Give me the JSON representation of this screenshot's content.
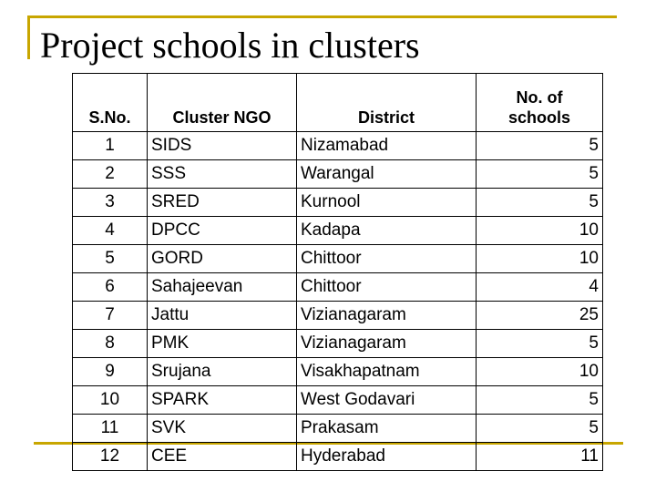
{
  "slide": {
    "title": "Project schools in clusters"
  },
  "table": {
    "headers": {
      "sno": "S.No.",
      "ngo": "Cluster NGO",
      "district": "District",
      "schools_line1": "No. of",
      "schools_line2": "schools"
    },
    "rows": [
      {
        "sno": "1",
        "ngo": "SIDS",
        "district": "Nizamabad",
        "schools": "5"
      },
      {
        "sno": "2",
        "ngo": "SSS",
        "district": "Warangal",
        "schools": "5"
      },
      {
        "sno": "3",
        "ngo": "SRED",
        "district": "Kurnool",
        "schools": "5"
      },
      {
        "sno": "4",
        "ngo": "DPCC",
        "district": "Kadapa",
        "schools": "10"
      },
      {
        "sno": "5",
        "ngo": "GORD",
        "district": "Chittoor",
        "schools": "10"
      },
      {
        "sno": "6",
        "ngo": "Sahajeevan",
        "district": "Chittoor",
        "schools": "4"
      },
      {
        "sno": "7",
        "ngo": "Jattu",
        "district": "Vizianagaram",
        "schools": "25"
      },
      {
        "sno": "8",
        "ngo": "PMK",
        "district": "Vizianagaram",
        "schools": "5"
      },
      {
        "sno": "9",
        "ngo": "Srujana",
        "district": "Visakhapatnam",
        "schools": "10"
      },
      {
        "sno": "10",
        "ngo": "SPARK",
        "district": "West Godavari",
        "schools": "5"
      },
      {
        "sno": "11",
        "ngo": "SVK",
        "district": "Prakasam",
        "schools": "5"
      },
      {
        "sno": "12",
        "ngo": "CEE",
        "district": "Hyderabad",
        "schools": "11"
      }
    ]
  },
  "colors": {
    "frame": "#c8a600",
    "text": "#000000",
    "background": "#ffffff"
  }
}
